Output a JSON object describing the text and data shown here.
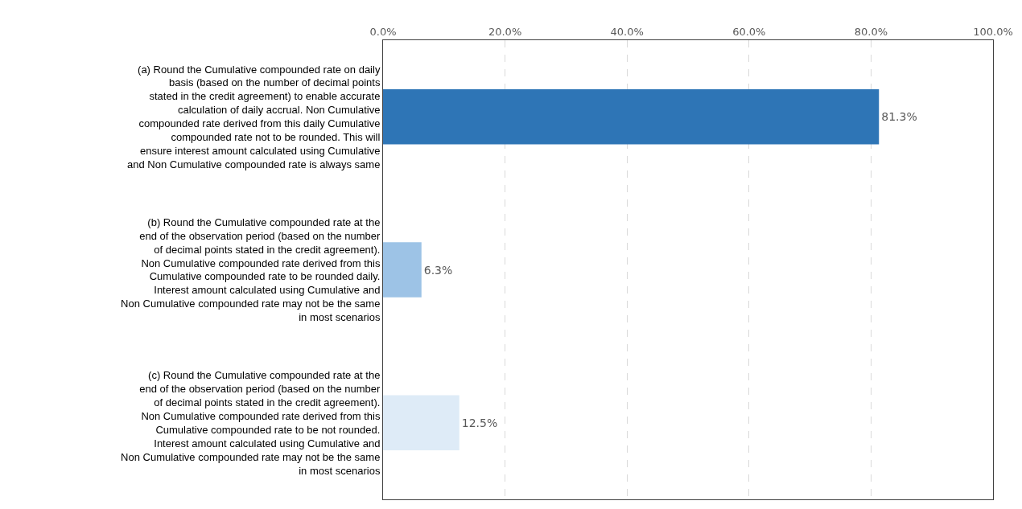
{
  "chart_data": {
    "type": "bar",
    "orientation": "horizontal",
    "categories": [
      "(a) Round the Cumulative compounded rate on daily basis (based on the number of decimal points stated in the credit agreement) to enable accurate calculation of daily accrual. Non Cumulative compounded rate derived from this daily Cumulative compounded rate not to be rounded. This will ensure interest amount calculated using Cumulative and Non Cumulative compounded rate is always same",
      "(b) Round the Cumulative compounded rate at the end of the observation period (based on the number of decimal points stated in the credit agreement). Non Cumulative compounded rate derived from this Cumulative compounded rate to be rounded daily. Interest amount calculated using Cumulative and Non Cumulative compounded rate may not be the same in most scenarios",
      "(c) Round the Cumulative compounded rate at the end of the observation period (based on the number of decimal points stated in the credit agreement). Non Cumulative compounded rate derived from this Cumulative compounded rate to be not rounded. Interest amount calculated using Cumulative and Non Cumulative compounded rate may not be the same in most scenarios"
    ],
    "values": [
      81.3,
      6.3,
      12.5
    ],
    "value_labels": [
      "81.3%",
      "6.3%",
      "12.5%"
    ],
    "colors": [
      "#2e75b6",
      "#9dc3e6",
      "#deebf7"
    ],
    "xlim": [
      0,
      100
    ],
    "xticks": [
      {
        "value": 0,
        "label": "0.0%"
      },
      {
        "value": 20,
        "label": "20.0%"
      },
      {
        "value": 40,
        "label": "40.0%"
      },
      {
        "value": 60,
        "label": "60.0%"
      },
      {
        "value": 80,
        "label": "80.0%"
      },
      {
        "value": 100,
        "label": "100.0%"
      }
    ],
    "grid": "x",
    "legend": false
  }
}
